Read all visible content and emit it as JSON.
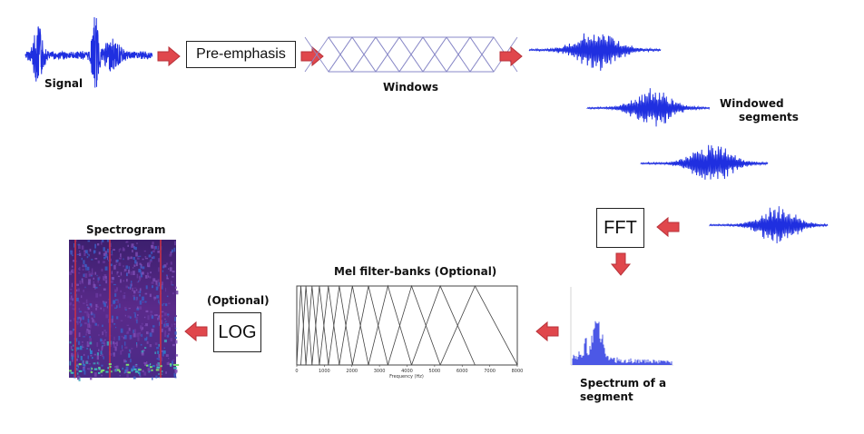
{
  "labels": {
    "signal": "Signal",
    "windows": "Windows",
    "windowed_segments_line1": "Windowed",
    "windowed_segments_line2": "segments",
    "spectrogram": "Spectrogram",
    "mel_filter_banks": "Mel filter-banks (Optional)",
    "optional": "(Optional)",
    "spectrum_line1": "Spectrum of a",
    "spectrum_line2": "segment"
  },
  "boxes": {
    "pre_emphasis": "Pre-emphasis",
    "fft": "FFT",
    "log": "LOG"
  },
  "mel_axis": {
    "ticks": [
      "0",
      "1000",
      "2000",
      "3000",
      "4000",
      "5000",
      "6000",
      "7000",
      "8000"
    ],
    "xlabel": "Frequency (Hz)"
  },
  "colors": {
    "waveform": "#1f2fe0",
    "arrow": "#e0474c",
    "arrow_edge": "#b8323a",
    "window_lines": "#8a8ac8",
    "spectrogram_bg": "#5a2a8a"
  },
  "icons": [
    "arrow-right-icon",
    "arrow-left-icon",
    "arrow-down-icon"
  ]
}
